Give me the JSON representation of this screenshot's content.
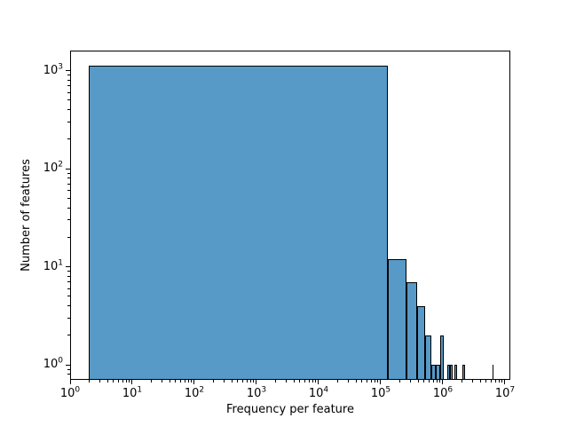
{
  "figure": {
    "background": "#ffffff"
  },
  "chart_data": {
    "type": "bar",
    "subtype": "histogram",
    "title": "",
    "xlabel": "Frequency per feature",
    "ylabel": "Number of features",
    "xscale": "log",
    "yscale": "log",
    "xlim": [
      1,
      12200000
    ],
    "ylim": [
      0.702,
      1600
    ],
    "x_tick_exponents": [
      0,
      1,
      2,
      3,
      4,
      5,
      6,
      7
    ],
    "y_tick_exponents": [
      0,
      1,
      2,
      3
    ],
    "grid": false,
    "legend": null,
    "bar_fill": "#5799c7",
    "bar_edge": "#000000",
    "bins": [
      {
        "x0": 2,
        "x1": 130000,
        "count": 1133
      },
      {
        "x0": 130000,
        "x1": 260000,
        "count": 12
      },
      {
        "x0": 260000,
        "x1": 390000,
        "count": 7
      },
      {
        "x0": 390000,
        "x1": 520000,
        "count": 4
      },
      {
        "x0": 520000,
        "x1": 650000,
        "count": 2
      },
      {
        "x0": 650000,
        "x1": 780000,
        "count": 1
      },
      {
        "x0": 780000,
        "x1": 910000,
        "count": 1
      },
      {
        "x0": 910000,
        "x1": 1040000,
        "count": 2
      },
      {
        "x0": 1170000,
        "x1": 1300000,
        "count": 1
      },
      {
        "x0": 1300000,
        "x1": 1430000,
        "count": 1
      },
      {
        "x0": 1560000,
        "x1": 1690000,
        "count": 1
      },
      {
        "x0": 2080000,
        "x1": 2210000,
        "count": 1
      },
      {
        "x0": 6370000,
        "x1": 6500000,
        "count": 1
      }
    ]
  }
}
